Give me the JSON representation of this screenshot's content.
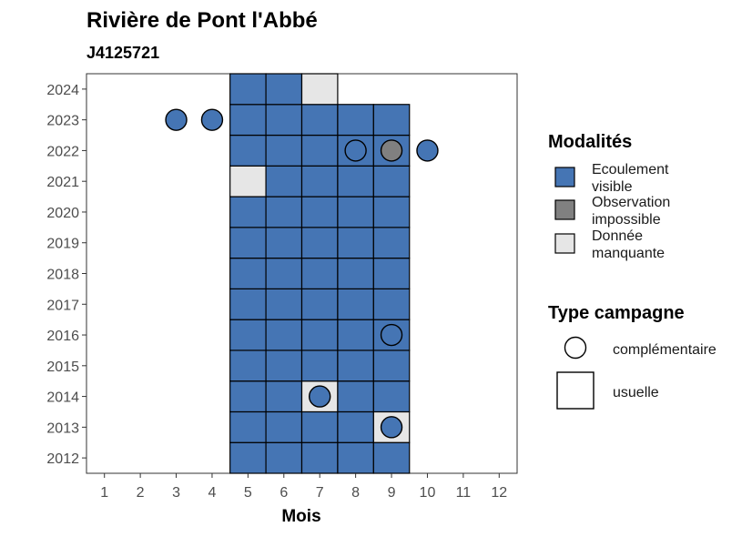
{
  "chart_data": {
    "type": "heatmap",
    "title": "Rivière de Pont l'Abbé",
    "subtitle": "J4125721",
    "xlabel": "Mois",
    "ylabel": "",
    "x_ticks": [
      "1",
      "2",
      "3",
      "4",
      "5",
      "6",
      "7",
      "8",
      "9",
      "10",
      "11",
      "12"
    ],
    "y_ticks": [
      "2012",
      "2013",
      "2014",
      "2015",
      "2016",
      "2017",
      "2018",
      "2019",
      "2020",
      "2021",
      "2022",
      "2023",
      "2024"
    ],
    "xlim": [
      0.5,
      12.5
    ],
    "ylim": [
      2011.5,
      2024.5
    ],
    "grid": false,
    "legend_position": "right",
    "colors": {
      "Ecoulement visible": "#4575b4",
      "Observation impossible": "#808080",
      "Donnée manquante": "#e6e6e6"
    },
    "legend": {
      "modalites_title": "Modalités",
      "modalites": [
        {
          "key": "Ecoulement visible",
          "lines": [
            "Ecoulement",
            "visible"
          ]
        },
        {
          "key": "Observation impossible",
          "lines": [
            "Observation",
            "impossible"
          ]
        },
        {
          "key": "Donnée manquante",
          "lines": [
            "Donnée",
            "manquante"
          ]
        }
      ],
      "type_title": "Type campagne",
      "types": [
        "complémentaire",
        "usuelle"
      ]
    },
    "usuelle": [
      {
        "year": 2012,
        "month": 5,
        "modalite": "Ecoulement visible"
      },
      {
        "year": 2012,
        "month": 6,
        "modalite": "Ecoulement visible"
      },
      {
        "year": 2012,
        "month": 7,
        "modalite": "Ecoulement visible"
      },
      {
        "year": 2012,
        "month": 8,
        "modalite": "Ecoulement visible"
      },
      {
        "year": 2012,
        "month": 9,
        "modalite": "Ecoulement visible"
      },
      {
        "year": 2013,
        "month": 5,
        "modalite": "Ecoulement visible"
      },
      {
        "year": 2013,
        "month": 6,
        "modalite": "Ecoulement visible"
      },
      {
        "year": 2013,
        "month": 7,
        "modalite": "Ecoulement visible"
      },
      {
        "year": 2013,
        "month": 8,
        "modalite": "Ecoulement visible"
      },
      {
        "year": 2013,
        "month": 9,
        "modalite": "Donnée manquante"
      },
      {
        "year": 2014,
        "month": 5,
        "modalite": "Ecoulement visible"
      },
      {
        "year": 2014,
        "month": 6,
        "modalite": "Ecoulement visible"
      },
      {
        "year": 2014,
        "month": 7,
        "modalite": "Donnée manquante"
      },
      {
        "year": 2014,
        "month": 8,
        "modalite": "Ecoulement visible"
      },
      {
        "year": 2014,
        "month": 9,
        "modalite": "Ecoulement visible"
      },
      {
        "year": 2015,
        "month": 5,
        "modalite": "Ecoulement visible"
      },
      {
        "year": 2015,
        "month": 6,
        "modalite": "Ecoulement visible"
      },
      {
        "year": 2015,
        "month": 7,
        "modalite": "Ecoulement visible"
      },
      {
        "year": 2015,
        "month": 8,
        "modalite": "Ecoulement visible"
      },
      {
        "year": 2015,
        "month": 9,
        "modalite": "Ecoulement visible"
      },
      {
        "year": 2016,
        "month": 5,
        "modalite": "Ecoulement visible"
      },
      {
        "year": 2016,
        "month": 6,
        "modalite": "Ecoulement visible"
      },
      {
        "year": 2016,
        "month": 7,
        "modalite": "Ecoulement visible"
      },
      {
        "year": 2016,
        "month": 8,
        "modalite": "Ecoulement visible"
      },
      {
        "year": 2016,
        "month": 9,
        "modalite": "Ecoulement visible"
      },
      {
        "year": 2017,
        "month": 5,
        "modalite": "Ecoulement visible"
      },
      {
        "year": 2017,
        "month": 6,
        "modalite": "Ecoulement visible"
      },
      {
        "year": 2017,
        "month": 7,
        "modalite": "Ecoulement visible"
      },
      {
        "year": 2017,
        "month": 8,
        "modalite": "Ecoulement visible"
      },
      {
        "year": 2017,
        "month": 9,
        "modalite": "Ecoulement visible"
      },
      {
        "year": 2018,
        "month": 5,
        "modalite": "Ecoulement visible"
      },
      {
        "year": 2018,
        "month": 6,
        "modalite": "Ecoulement visible"
      },
      {
        "year": 2018,
        "month": 7,
        "modalite": "Ecoulement visible"
      },
      {
        "year": 2018,
        "month": 8,
        "modalite": "Ecoulement visible"
      },
      {
        "year": 2018,
        "month": 9,
        "modalite": "Ecoulement visible"
      },
      {
        "year": 2019,
        "month": 5,
        "modalite": "Ecoulement visible"
      },
      {
        "year": 2019,
        "month": 6,
        "modalite": "Ecoulement visible"
      },
      {
        "year": 2019,
        "month": 7,
        "modalite": "Ecoulement visible"
      },
      {
        "year": 2019,
        "month": 8,
        "modalite": "Ecoulement visible"
      },
      {
        "year": 2019,
        "month": 9,
        "modalite": "Ecoulement visible"
      },
      {
        "year": 2020,
        "month": 5,
        "modalite": "Ecoulement visible"
      },
      {
        "year": 2020,
        "month": 6,
        "modalite": "Ecoulement visible"
      },
      {
        "year": 2020,
        "month": 7,
        "modalite": "Ecoulement visible"
      },
      {
        "year": 2020,
        "month": 8,
        "modalite": "Ecoulement visible"
      },
      {
        "year": 2020,
        "month": 9,
        "modalite": "Ecoulement visible"
      },
      {
        "year": 2021,
        "month": 5,
        "modalite": "Donnée manquante"
      },
      {
        "year": 2021,
        "month": 6,
        "modalite": "Ecoulement visible"
      },
      {
        "year": 2021,
        "month": 7,
        "modalite": "Ecoulement visible"
      },
      {
        "year": 2021,
        "month": 8,
        "modalite": "Ecoulement visible"
      },
      {
        "year": 2021,
        "month": 9,
        "modalite": "Ecoulement visible"
      },
      {
        "year": 2022,
        "month": 5,
        "modalite": "Ecoulement visible"
      },
      {
        "year": 2022,
        "month": 6,
        "modalite": "Ecoulement visible"
      },
      {
        "year": 2022,
        "month": 7,
        "modalite": "Ecoulement visible"
      },
      {
        "year": 2022,
        "month": 8,
        "modalite": "Ecoulement visible"
      },
      {
        "year": 2022,
        "month": 9,
        "modalite": "Ecoulement visible"
      },
      {
        "year": 2023,
        "month": 5,
        "modalite": "Ecoulement visible"
      },
      {
        "year": 2023,
        "month": 6,
        "modalite": "Ecoulement visible"
      },
      {
        "year": 2023,
        "month": 7,
        "modalite": "Ecoulement visible"
      },
      {
        "year": 2023,
        "month": 8,
        "modalite": "Ecoulement visible"
      },
      {
        "year": 2023,
        "month": 9,
        "modalite": "Ecoulement visible"
      },
      {
        "year": 2024,
        "month": 5,
        "modalite": "Ecoulement visible"
      },
      {
        "year": 2024,
        "month": 6,
        "modalite": "Ecoulement visible"
      },
      {
        "year": 2024,
        "month": 7,
        "modalite": "Donnée manquante"
      }
    ],
    "complementaire": [
      {
        "year": 2023,
        "month": 3,
        "modalite": "Ecoulement visible"
      },
      {
        "year": 2023,
        "month": 4,
        "modalite": "Ecoulement visible"
      },
      {
        "year": 2022,
        "month": 8,
        "modalite": "Ecoulement visible"
      },
      {
        "year": 2022,
        "month": 9,
        "modalite": "Observation impossible"
      },
      {
        "year": 2022,
        "month": 10,
        "modalite": "Ecoulement visible"
      },
      {
        "year": 2016,
        "month": 9,
        "modalite": "Ecoulement visible"
      },
      {
        "year": 2014,
        "month": 7,
        "modalite": "Ecoulement visible"
      },
      {
        "year": 2013,
        "month": 9,
        "modalite": "Ecoulement visible"
      }
    ]
  }
}
